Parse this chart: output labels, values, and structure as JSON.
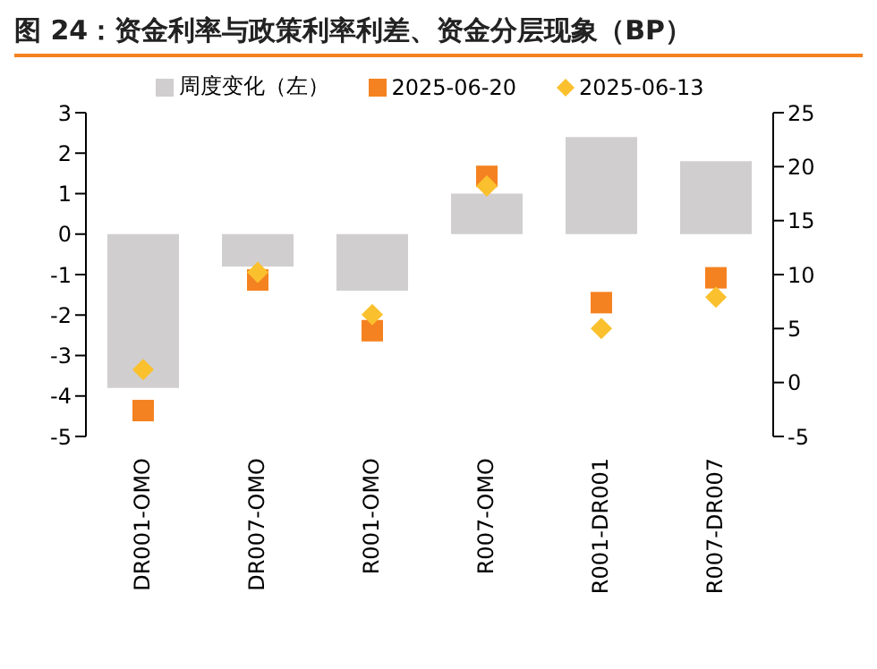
{
  "chart_data": {
    "type": "bar",
    "title": "图 24：资金利率与政策利率利差、资金分层现象（BP）",
    "categories": [
      "DR001-OMO",
      "DR007-OMO",
      "R001-OMO",
      "R007-OMO",
      "R001-DR001",
      "R007-DR007"
    ],
    "series": [
      {
        "name": "周度变化（左）",
        "color": "#d0cece",
        "values": [
          -3.8,
          -0.8,
          -1.4,
          1.0,
          2.4,
          1.8
        ]
      },
      {
        "name": "2025-06-20",
        "type": "scatter",
        "marker": "square",
        "axis": "y2",
        "color": "#f58220",
        "values": [
          -2.6,
          9.5,
          4.8,
          19.1,
          7.4,
          9.7
        ]
      },
      {
        "name": "2025-06-13",
        "type": "scatter",
        "marker": "diamond",
        "axis": "y2",
        "color": "#fbc02d",
        "values": [
          1.2,
          10.2,
          6.3,
          18.2,
          5.0,
          7.9
        ]
      }
    ],
    "ylim": [
      -5,
      3
    ],
    "yticks": [
      -5,
      -4,
      -3,
      -2,
      -1,
      0,
      1,
      2,
      3
    ],
    "y2lim": [
      -5,
      25
    ],
    "y2ticks": [
      -5,
      0,
      5,
      10,
      15,
      20,
      25
    ],
    "legend": "top"
  }
}
